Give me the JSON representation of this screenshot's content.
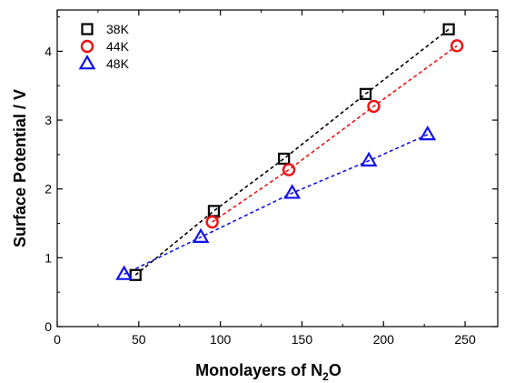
{
  "chart_data": {
    "type": "scatter",
    "title": "",
    "xlabel_main": "Monolayers of N",
    "xlabel_sub": "2",
    "xlabel_tail": "O",
    "ylabel": "Surface Potential / V",
    "xlim": [
      0,
      270
    ],
    "ylim": [
      0,
      4.6
    ],
    "xticks": [
      0,
      50,
      100,
      150,
      200,
      250
    ],
    "yticks": [
      0,
      1,
      2,
      3,
      4
    ],
    "grid": false,
    "legend_position": "top-left",
    "series": [
      {
        "name": "38K",
        "marker": "square",
        "color": "#000000",
        "points": [
          [
            48,
            0.75
          ],
          [
            96,
            1.68
          ],
          [
            139,
            2.44
          ],
          [
            189,
            3.38
          ],
          [
            240,
            4.32
          ]
        ]
      },
      {
        "name": "44K",
        "marker": "circle",
        "color": "#ee1111",
        "points": [
          [
            95,
            1.52
          ],
          [
            142,
            2.28
          ],
          [
            194,
            3.2
          ],
          [
            245,
            4.08
          ]
        ]
      },
      {
        "name": "48K",
        "marker": "triangle",
        "color": "#1111ee",
        "points": [
          [
            41,
            0.76
          ],
          [
            88,
            1.3
          ],
          [
            144,
            1.94
          ],
          [
            191,
            2.41
          ],
          [
            227,
            2.79
          ]
        ]
      }
    ]
  }
}
